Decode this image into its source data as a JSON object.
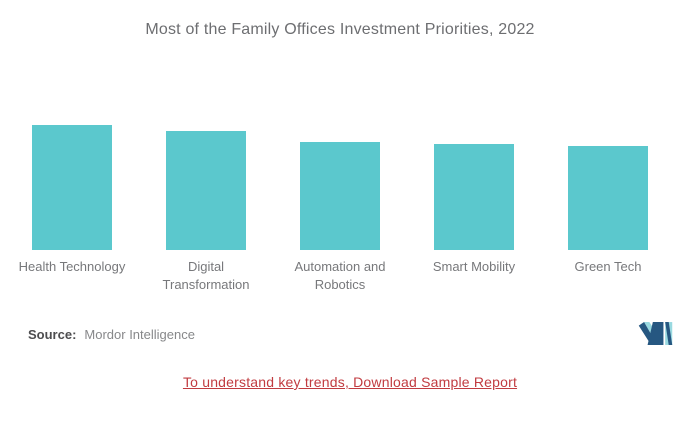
{
  "chart_data": {
    "type": "bar",
    "title": "Most of the Family Offices Investment Priorities, 2022",
    "categories": [
      "Health Technology",
      "Digital Transformation",
      "Automation and Robotics",
      "Smart Mobility",
      "Green Tech"
    ],
    "values": [
      100,
      95,
      86,
      85,
      83
    ],
    "xlabel": "",
    "ylabel": "",
    "ylim": [
      0,
      120
    ],
    "grid": false,
    "legend": "none",
    "bar_color": "#5BC8CD",
    "label_color": "#77787b",
    "title_color": "#6d6e71"
  },
  "footer": {
    "source_label": "Source:",
    "source_value": "Mordor Intelligence",
    "link_text": "To understand key trends, Download Sample Report",
    "link_color": "#C13B40"
  },
  "logo": {
    "alt": "Mordor Intelligence logo",
    "navy": "#265781",
    "teal": "#99D9E0"
  }
}
